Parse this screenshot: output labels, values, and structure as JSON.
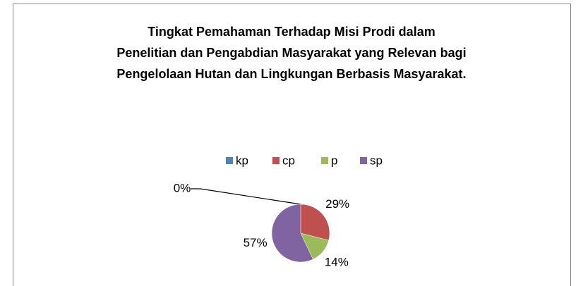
{
  "chart_data": {
    "type": "pie",
    "title": [
      "Tingkat Pemahaman Terhadap Misi Prodi dalam",
      "Penelitian dan Pengabdian Masyarakat yang Relevan bagi",
      "Pengelolaan Hutan dan Lingkungan Berbasis Masyarakat."
    ],
    "categories": [
      "kp",
      "cp",
      "p",
      "sp"
    ],
    "values": [
      0,
      29,
      14,
      57
    ],
    "value_labels": [
      "0%",
      "29%",
      "14%",
      "57%"
    ],
    "colors": [
      "#4f81bd",
      "#c0504d",
      "#9bbb59",
      "#8064a2"
    ],
    "legend": "top"
  }
}
